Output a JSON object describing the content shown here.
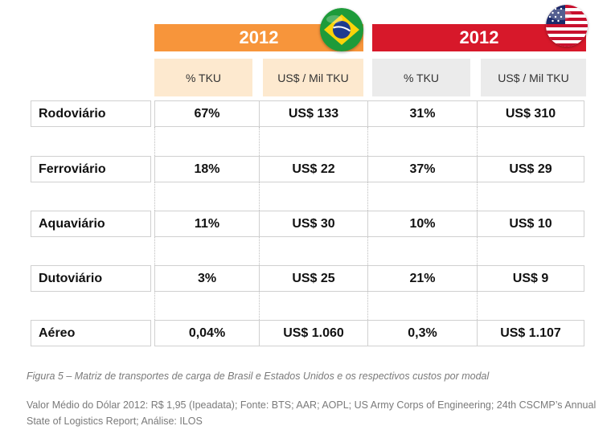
{
  "chart_data": {
    "type": "table",
    "groups": [
      {
        "name": "2012",
        "country_icon": "brazil-flag-icon",
        "color": "#f7953b",
        "sub_color": "#fde9cf",
        "columns": [
          "% TKU",
          "US$ / Mil TKU"
        ]
      },
      {
        "name": "2012",
        "country_icon": "usa-flag-icon",
        "color": "#d7182a",
        "sub_color": "#ebebeb",
        "columns": [
          "% TKU",
          "US$ / Mil TKU"
        ]
      }
    ],
    "rows": [
      {
        "mode": "Rodoviário",
        "values": [
          "67%",
          "US$ 133",
          "31%",
          "US$ 310"
        ]
      },
      {
        "mode": "Ferroviário",
        "values": [
          "18%",
          "US$ 22",
          "37%",
          "US$ 29"
        ]
      },
      {
        "mode": "Aquaviário",
        "values": [
          "11%",
          "US$ 30",
          "10%",
          "US$ 10"
        ]
      },
      {
        "mode": "Dutoviário",
        "values": [
          "3%",
          "US$ 25",
          "21%",
          "US$ 9"
        ]
      },
      {
        "mode": "Aéreo",
        "values": [
          "0,04%",
          "US$ 1.060",
          "0,3%",
          "US$ 1.107"
        ]
      }
    ]
  },
  "caption": "Figura 5 – Matriz de transportes de carga de Brasil e Estados Unidos  e os respectivos custos por modal",
  "source": "Valor Médio do Dólar 2012: R$ 1,95 (Ipeadata); Fonte: BTS; AAR; AOPL; US Army Corps of Engineering; 24th CSCMP’s Annual State of Logistics Report; Análise: ILOS"
}
